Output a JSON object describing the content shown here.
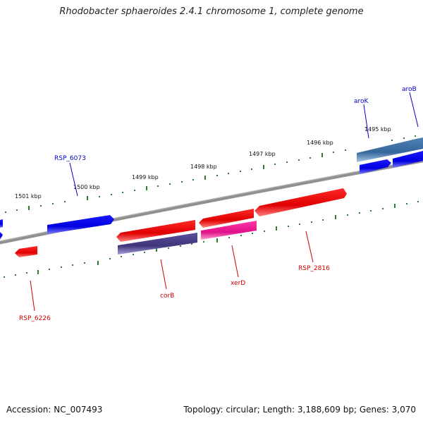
{
  "title": "Rhodobacter sphaeroides 2.4.1 chromosome 1, complete genome",
  "footer": {
    "accession": "Accession: NC_007493",
    "info": "Topology: circular; Length: 3,188,609 bp; Genes: 3,070"
  },
  "colors": {
    "backbone": "#808080",
    "ticks": "#2e7d2e",
    "gene_red": "#ee0000",
    "gene_blue": "#0000ee",
    "gene_purple": "#4a3f8c",
    "gene_magenta": "#e0188a",
    "gene_steel": "#3e6fa0",
    "label_blue": "#0000cc",
    "label_red": "#cc0000"
  },
  "scale": {
    "ticks": [
      {
        "label": "1501 kbp"
      },
      {
        "label": "1500 kbp"
      },
      {
        "label": "1499 kbp"
      },
      {
        "label": "1498 kbp"
      },
      {
        "label": "1497 kbp"
      },
      {
        "label": "1496 kbp"
      },
      {
        "label": "1495 kbp"
      }
    ]
  },
  "gene_labels": [
    {
      "text": "RSP_6073",
      "color": "label_blue"
    },
    {
      "text": "aroK",
      "color": "label_blue"
    },
    {
      "text": "aroB",
      "color": "label_blue"
    },
    {
      "text": "RSP_6226",
      "color": "label_red"
    },
    {
      "text": "corB",
      "color": "label_red"
    },
    {
      "text": "xerD",
      "color": "label_red"
    },
    {
      "text": "RSP_2816",
      "color": "label_red"
    }
  ]
}
